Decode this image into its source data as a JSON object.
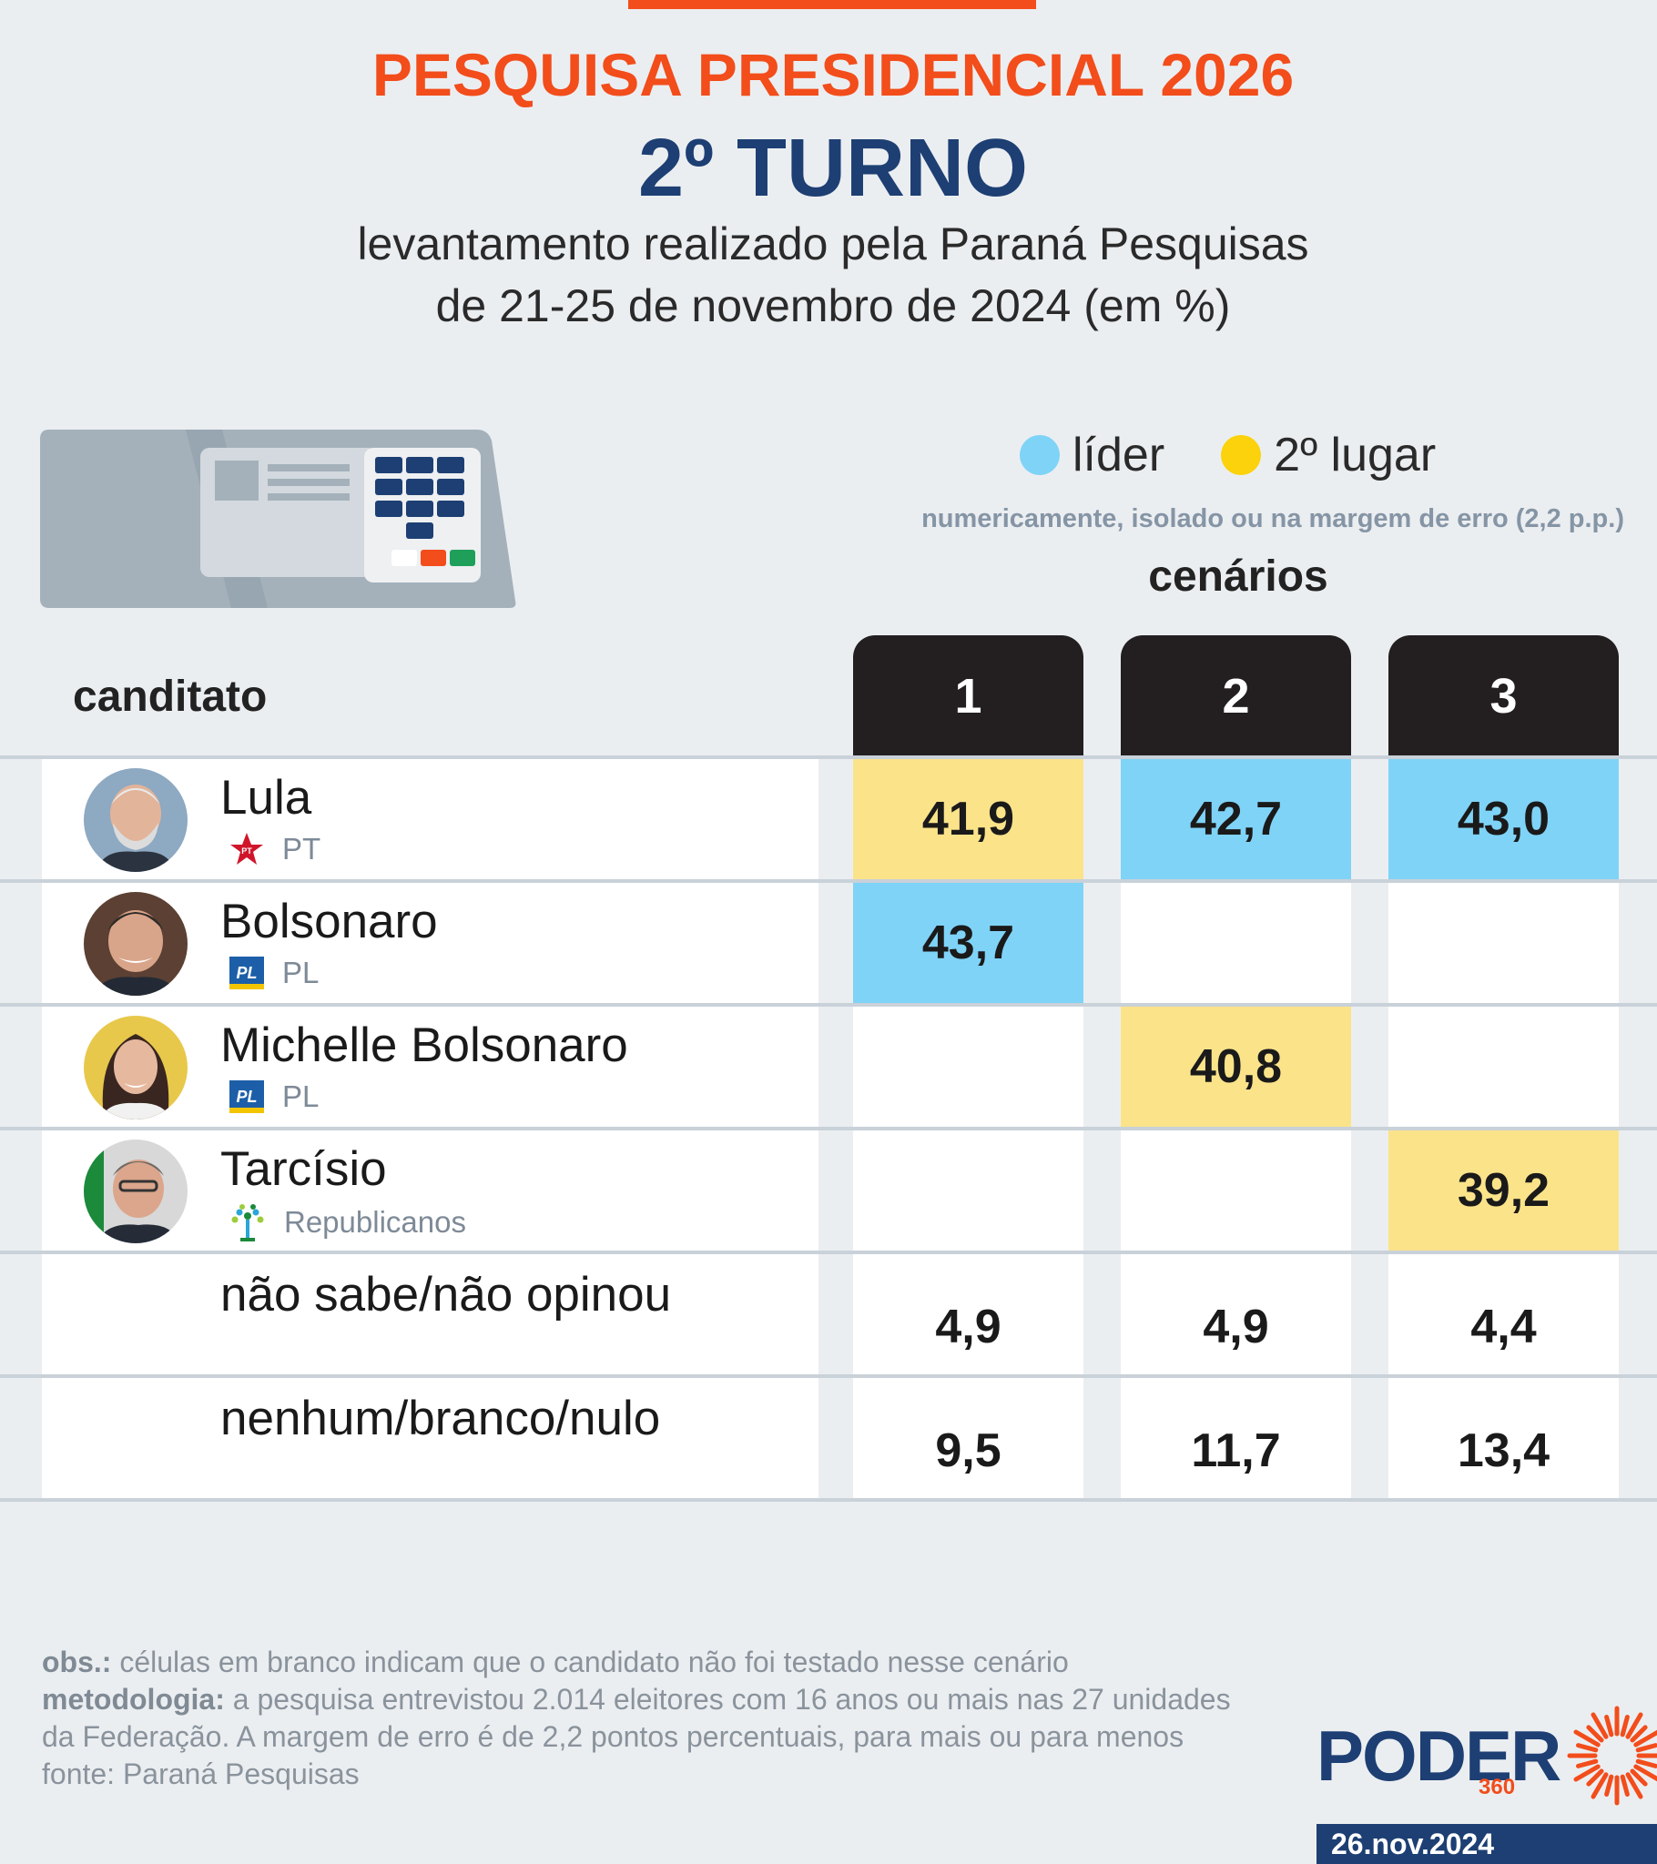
{
  "header": {
    "kicker": "PESQUISA PRESIDENCIAL 2026",
    "title": "2º TURNO",
    "subtitle_line1": "levantamento realizado pela Paraná Pesquisas",
    "subtitle_line2": "de 21-25 de novembro de 2024 (em %)"
  },
  "legend": {
    "leader_label": "líder",
    "second_label": "2º lugar",
    "note": "numericamente, isolado ou na margem de erro (2,2 p.p.)",
    "leader_color": "#7fd3f7",
    "second_color": "#fbe38a"
  },
  "table": {
    "candidate_header": "canditato",
    "scenarios_title": "cenários",
    "scenarios": [
      "1",
      "2",
      "3"
    ]
  },
  "chart_data": {
    "type": "table",
    "title": "PESQUISA PRESIDENCIAL 2026",
    "columns": [
      "1",
      "2",
      "3"
    ],
    "rows": [
      {
        "name": "Lula",
        "party": "PT",
        "values": [
          "41,9",
          "42,7",
          "43,0"
        ],
        "highlight": [
          "second",
          "leader",
          "leader"
        ]
      },
      {
        "name": "Bolsonaro",
        "party": "PL",
        "values": [
          "43,7",
          "",
          ""
        ],
        "highlight": [
          "leader",
          "",
          ""
        ]
      },
      {
        "name": "Michelle Bolsonaro",
        "party": "PL",
        "values": [
          "",
          "40,8",
          ""
        ],
        "highlight": [
          "",
          "second",
          ""
        ]
      },
      {
        "name": "Tarcísio",
        "party": "Republicanos",
        "values": [
          "",
          "",
          "39,2"
        ],
        "highlight": [
          "",
          "",
          "second"
        ]
      },
      {
        "name": "não sabe/não opinou",
        "party": "",
        "values": [
          "4,9",
          "4,9",
          "4,4"
        ],
        "highlight": [
          "",
          "",
          ""
        ]
      },
      {
        "name": "nenhum/branco/nulo",
        "party": "",
        "values": [
          "9,5",
          "11,7",
          "13,4"
        ],
        "highlight": [
          "",
          "",
          ""
        ]
      }
    ]
  },
  "footer": {
    "obs_label": "obs.:",
    "obs_text": " células em branco indicam que o candidato não foi testado nesse cenário",
    "method_label": "metodologia:",
    "method_text": " a pesquisa entrevistou 2.014 eleitores com 16 anos ou mais nas 27 unidades da Federação. A margem de erro é de 2,2 pontos percentuais, para mais ou para menos",
    "source": "fonte: Paraná Pesquisas"
  },
  "brand": {
    "name": "PODER",
    "number": "360",
    "date": "26.nov.2024"
  }
}
